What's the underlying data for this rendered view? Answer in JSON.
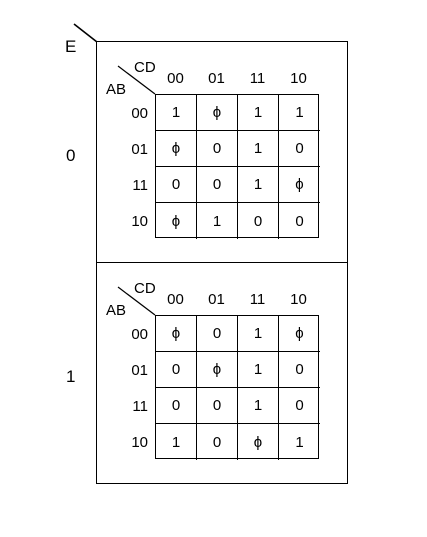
{
  "variables": {
    "outer": "E",
    "rows": "AB",
    "cols": "CD"
  },
  "column_headers": [
    "00",
    "01",
    "11",
    "10"
  ],
  "row_headers": [
    "00",
    "01",
    "11",
    "10"
  ],
  "maps": [
    {
      "e_value": "0",
      "cells": [
        [
          "1",
          "ϕ",
          "1",
          "1"
        ],
        [
          "ϕ",
          "0",
          "1",
          "0"
        ],
        [
          "0",
          "0",
          "1",
          "ϕ"
        ],
        [
          "ϕ",
          "1",
          "0",
          "0"
        ]
      ]
    },
    {
      "e_value": "1",
      "cells": [
        [
          "ϕ",
          "0",
          "1",
          "ϕ"
        ],
        [
          "0",
          "ϕ",
          "1",
          "0"
        ],
        [
          "0",
          "0",
          "1",
          "0"
        ],
        [
          "1",
          "0",
          "ϕ",
          "1"
        ]
      ]
    }
  ]
}
